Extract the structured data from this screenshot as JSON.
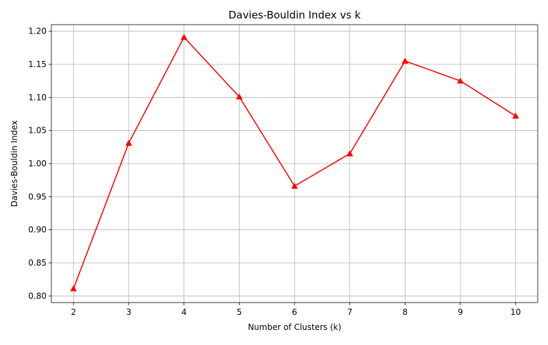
{
  "chart_data": {
    "type": "line",
    "title": "Davies-Bouldin Index vs k",
    "xlabel": "Number of Clusters (k)",
    "ylabel": "Davies-Bouldin Index",
    "x": [
      2,
      3,
      4,
      5,
      6,
      7,
      8,
      9,
      10
    ],
    "y": [
      0.811,
      1.031,
      1.191,
      1.101,
      0.966,
      1.015,
      1.155,
      1.125,
      1.072
    ],
    "xlim": [
      1.6,
      10.4
    ],
    "ylim": [
      0.79,
      1.21
    ],
    "xticks": [
      "2",
      "3",
      "4",
      "5",
      "6",
      "7",
      "8",
      "9",
      "10"
    ],
    "yticks": [
      "0.80",
      "0.85",
      "0.90",
      "0.95",
      "1.00",
      "1.05",
      "1.10",
      "1.15",
      "1.20"
    ],
    "grid": true,
    "line_color": "#ff0000",
    "marker": "triangle-up"
  }
}
